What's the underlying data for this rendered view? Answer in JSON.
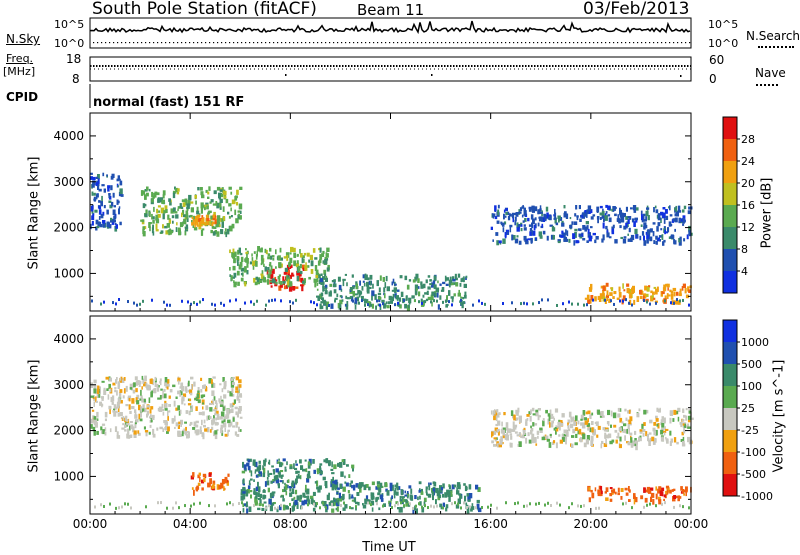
{
  "header": {
    "station": "South Pole Station (fitACF)",
    "beam": "Beam 11",
    "date": "03/Feb/2013"
  },
  "top_panels": {
    "nsky_label": "N.Sky",
    "nsky_ticks": [
      "10^5",
      "10^0"
    ],
    "nsearch_label": "N.Search",
    "nsearch_ticks": [
      "10^5",
      "10^0"
    ],
    "freq_label_line1": "Freq.",
    "freq_label_line2": "[MHz]",
    "freq_ticks": [
      "18",
      "8"
    ],
    "nave_label": "Nave",
    "nave_ticks": [
      "60",
      "0"
    ],
    "cpid_label": "CPID",
    "cpid_text": "normal (fast) 151 RF"
  },
  "colors": {
    "power_scale": [
      "#1030e0",
      "#2050b0",
      "#3a8a6a",
      "#5aaa50",
      "#c0c020",
      "#f0a010",
      "#f06010",
      "#e01010"
    ],
    "velocity_scale": [
      "#1030e0",
      "#2050b0",
      "#3a8a6a",
      "#5aaa50",
      "#c8c8c0",
      "#f0a010",
      "#f06010",
      "#e01010"
    ]
  },
  "chart_data": [
    {
      "type": "heatmap",
      "name": "power",
      "ylabel": "Slant Range [km]",
      "xlabel": "",
      "x_ticks": [
        "00:00",
        "04:00",
        "08:00",
        "12:00",
        "16:00",
        "20:00",
        "00:00"
      ],
      "y_ticks": [
        1000,
        2000,
        3000,
        4000
      ],
      "ylim": [
        180,
        4500
      ],
      "colorbar": {
        "label": "Power [dB]",
        "ticks": [
          "4",
          "8",
          "12",
          "16",
          "20",
          "24",
          "28"
        ],
        "range": [
          0,
          32
        ]
      },
      "features": [
        {
          "time_range": [
            "00:00",
            "01:15"
          ],
          "range_km": [
            2000,
            3200
          ],
          "power_db": 4
        },
        {
          "time_range": [
            "02:00",
            "06:00"
          ],
          "range_km": [
            1900,
            2900
          ],
          "power_db": 12
        },
        {
          "time_range": [
            "04:00",
            "05:00"
          ],
          "range_km": [
            2100,
            2300
          ],
          "power_db": 20
        },
        {
          "time_range": [
            "07:00",
            "08:30"
          ],
          "range_km": [
            700,
            1200
          ],
          "power_db": 28
        },
        {
          "time_range": [
            "05:30",
            "09:30"
          ],
          "range_km": [
            800,
            1600
          ],
          "power_db": 12
        },
        {
          "time_range": [
            "09:00",
            "15:00"
          ],
          "range_km": [
            300,
            1000
          ],
          "power_db": 8
        },
        {
          "time_range": [
            "16:00",
            "23:59"
          ],
          "range_km": [
            1700,
            2500
          ],
          "power_db": 6
        },
        {
          "time_range": [
            "19:45",
            "23:59"
          ],
          "range_km": [
            400,
            800
          ],
          "power_db": 22
        }
      ]
    },
    {
      "type": "heatmap",
      "name": "velocity",
      "ylabel": "Slant Range [km]",
      "xlabel": "Time UT",
      "x_ticks": [
        "00:00",
        "04:00",
        "08:00",
        "12:00",
        "16:00",
        "20:00",
        "00:00"
      ],
      "y_ticks": [
        1000,
        2000,
        3000,
        4000
      ],
      "ylim": [
        180,
        4500
      ],
      "colorbar": {
        "label": "Velocity [m s^-1]",
        "ticks": [
          "1000",
          "500",
          "100",
          "25",
          "-25",
          "-100",
          "-500",
          "-1000"
        ]
      },
      "features": [
        {
          "time_range": [
            "00:00",
            "06:00"
          ],
          "range_km": [
            1900,
            3200
          ],
          "velocity": 0
        },
        {
          "time_range": [
            "16:00",
            "23:59"
          ],
          "range_km": [
            1700,
            2500
          ],
          "velocity": 0
        },
        {
          "time_range": [
            "04:00",
            "05:30"
          ],
          "range_km": [
            700,
            1100
          ],
          "velocity": -300
        },
        {
          "time_range": [
            "06:00",
            "10:30"
          ],
          "range_km": [
            300,
            1400
          ],
          "velocity": 300
        },
        {
          "time_range": [
            "10:30",
            "15:30"
          ],
          "range_km": [
            300,
            900
          ],
          "velocity": 300
        },
        {
          "time_range": [
            "19:45",
            "23:59"
          ],
          "range_km": [
            500,
            800
          ],
          "velocity": -300
        }
      ]
    }
  ]
}
